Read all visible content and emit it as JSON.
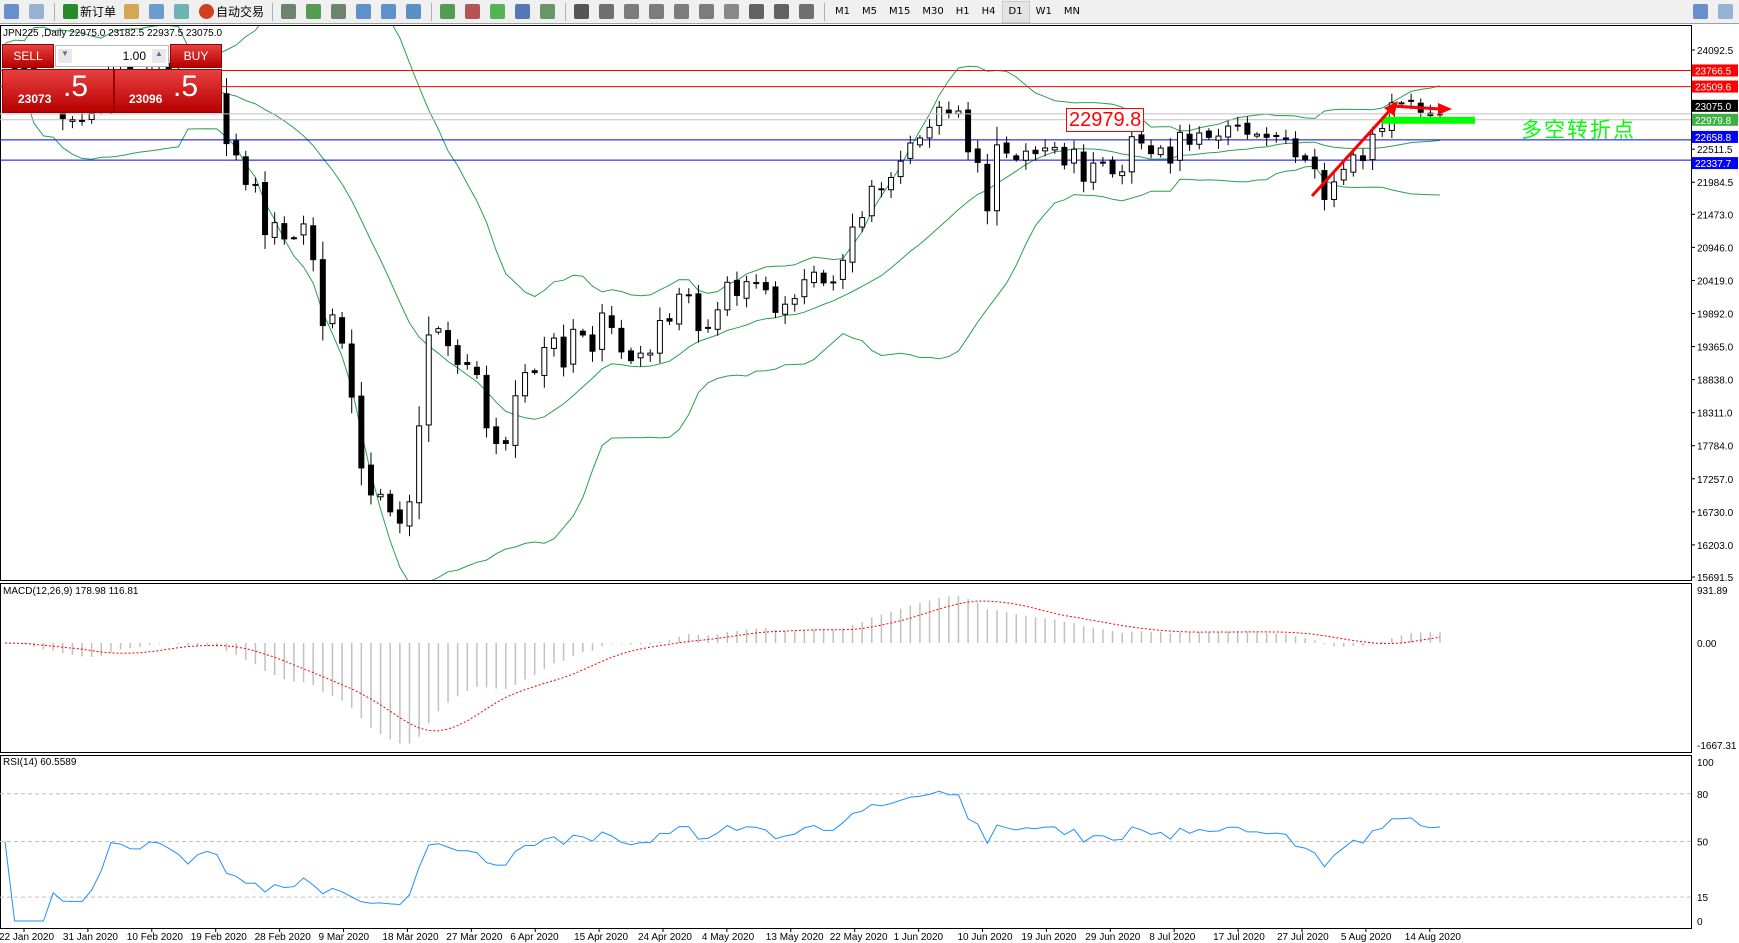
{
  "toolbar": {
    "new_order": "新订单",
    "auto_trading": "自动交易",
    "timeframes": [
      "M1",
      "M5",
      "M15",
      "M30",
      "H1",
      "H4",
      "D1",
      "W1",
      "MN"
    ],
    "active_timeframe": "D1",
    "icons": [
      "new-chart-icon",
      "zoom-chart-icon",
      "new-order-icon",
      "market-watch-icon",
      "navigator-icon",
      "signals-icon",
      "auto-trading-icon",
      "bar-chart-icon",
      "candlestick-icon",
      "line-chart-icon",
      "zoom-in-icon",
      "zoom-out-icon",
      "tile-windows-icon",
      "auto-scroll-icon",
      "chart-shift-icon",
      "indicators-icon",
      "periods-icon",
      "templates-icon",
      "cursor-icon",
      "crosshair-icon",
      "vertical-line-icon",
      "horizontal-line-icon",
      "trendline-icon",
      "fibonacci-icon",
      "channel-icon",
      "text-icon",
      "text-label-icon",
      "arrows-icon",
      "search-icon",
      "chat-icon"
    ]
  },
  "chart_title": "JPN225 ,Daily  22975.0 23182.5 22937.5 23075.0",
  "trade_panel": {
    "sell_label": "SELL",
    "buy_label": "BUY",
    "lot": "1.00",
    "sell_price_main": "23073",
    "sell_price_big": ".5",
    "buy_price_main": "23096",
    "buy_price_big": ".5"
  },
  "annotations": {
    "price_box": "22979.8",
    "turning_point_text": "多空转折点",
    "colors": {
      "red": "#ff0000",
      "green": "#00ff00",
      "blue": "#0000ff"
    }
  },
  "chart_data": {
    "type": "candlestick",
    "symbol": "JPN225",
    "timeframe": "Daily",
    "price_axis_ticks": [
      "24092.5",
      "21984.5",
      "21473.0",
      "20946.0",
      "20419.0",
      "19892.0",
      "19365.0",
      "18838.0",
      "18311.0",
      "17784.0",
      "17257.0",
      "16730.0",
      "16203.0",
      "15691.5"
    ],
    "price_axis_extra": [
      "22511.5"
    ],
    "ylim": [
      15691.5,
      24092.5
    ],
    "horizontal_lines": [
      {
        "price": 23766.5,
        "color": "#ff0000",
        "label": "23766.5"
      },
      {
        "price": 23509.6,
        "color": "#ff0000",
        "label": "23509.6"
      },
      {
        "price": 22979.8,
        "color": "#c0c0c0",
        "label": "22979.8",
        "label_bg": "#3cb043"
      },
      {
        "price": 22658.8,
        "color": "#0000ff",
        "label": "22658.8"
      },
      {
        "price": 22337.7,
        "color": "#0000ff",
        "label": "22337.7"
      }
    ],
    "current_price": {
      "price": 23075.0,
      "label": "23075.0"
    },
    "date_labels": [
      "22 Jan 2020",
      "31 Jan 2020",
      "10 Feb 2020",
      "19 Feb 2020",
      "28 Feb 2020",
      "9 Mar 2020",
      "18 Mar 2020",
      "27 Mar 2020",
      "6 Apr 2020",
      "15 Apr 2020",
      "24 Apr 2020",
      "4 May 2020",
      "13 May 2020",
      "22 May 2020",
      "1 Jun 2020",
      "10 Jun 2020",
      "19 Jun 2020",
      "29 Jun 2020",
      "8 Jul 2020",
      "17 Jul 2020",
      "27 Jul 2020",
      "5 Aug 2020",
      "14 Aug 2020"
    ],
    "closes": [
      23900,
      23800,
      23750,
      23300,
      23200,
      23350,
      23000,
      22980,
      22970,
      23080,
      23320,
      23870,
      23830,
      23690,
      23680,
      23860,
      23830,
      23690,
      23520,
      23190,
      23400,
      23480,
      23380,
      22600,
      22420,
      21950,
      21950,
      21150,
      21340,
      21080,
      21100,
      21320,
      20750,
      19700,
      19870,
      19420,
      18560,
      17430,
      17000,
      17010,
      16730,
      16550,
      16890,
      18100,
      19550,
      19650,
      19380,
      19080,
      19080,
      18920,
      18070,
      17820,
      17820,
      18580,
      18950,
      18950,
      19350,
      19500,
      19040,
      19640,
      19550,
      19290,
      19900,
      19670,
      19280,
      19140,
      19260,
      19260,
      19780,
      19770,
      20200,
      20190,
      19620,
      19670,
      19950,
      20390,
      20180,
      20400,
      20370,
      20270,
      19910,
      20040,
      20130,
      20430,
      20550,
      20380,
      20390,
      20740,
      21270,
      21420,
      21920,
      21880,
      22060,
      22320,
      22610,
      22690,
      22860,
      23180,
      23090,
      23120,
      22470,
      22300,
      21530,
      22580,
      22450,
      22350,
      22480,
      22440,
      22530,
      22540,
      22260,
      22510,
      22000,
      22290,
      22290,
      22120,
      22150,
      22710,
      22610,
      22440,
      22530,
      22290,
      22780,
      22590,
      22770,
      22700,
      22720,
      22880,
      22880,
      22750,
      22750,
      22700,
      22720,
      22690,
      22390,
      22340,
      22200,
      21710,
      21990,
      22190,
      22420,
      22330,
      22750,
      22840,
      23250,
      23250,
      23290,
      23100,
      23050,
      23075
    ],
    "bollinger": {
      "period": 20,
      "deviation": 2,
      "color": "#2e9e4f"
    },
    "macd": {
      "title": "MACD(12,26,9) 178.98 116.81",
      "ticks": [
        "931.89",
        "0.00",
        "-1667.31"
      ],
      "range": [
        -1667.31,
        931.89
      ],
      "histogram_color": "#c0c0c0",
      "signal_color": "#ff0000"
    },
    "rsi": {
      "title": "RSI(14) 60.5589",
      "ticks": [
        "100",
        "80",
        "50",
        "15",
        "0"
      ],
      "levels": [
        80,
        50,
        15
      ],
      "color": "#1e90ff"
    }
  }
}
